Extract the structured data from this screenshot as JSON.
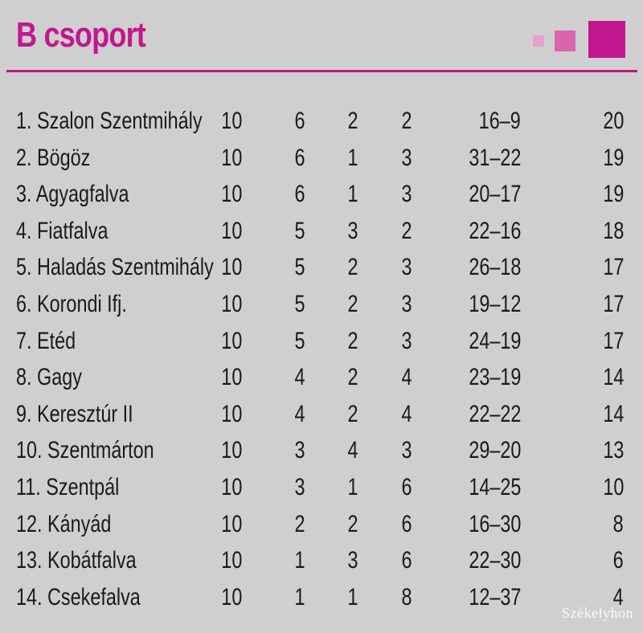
{
  "header": {
    "title": "B csoport",
    "accent_color": "#c2168e"
  },
  "standings": [
    {
      "name": "1. Szalon Szentmihály",
      "played": "10",
      "won": "6",
      "drawn": "2",
      "lost": "2",
      "goals": "16–9",
      "points": "20"
    },
    {
      "name": "2. Bögöz",
      "played": "10",
      "won": "6",
      "drawn": "1",
      "lost": "3",
      "goals": "31–22",
      "points": "19"
    },
    {
      "name": "3. Agyagfalva",
      "played": "10",
      "won": "6",
      "drawn": "1",
      "lost": "3",
      "goals": "20–17",
      "points": "19"
    },
    {
      "name": "4. Fiatfalva",
      "played": "10",
      "won": "5",
      "drawn": "3",
      "lost": "2",
      "goals": "22–16",
      "points": "18"
    },
    {
      "name": "5. Haladás Szentmihály",
      "played": "10",
      "won": "5",
      "drawn": "2",
      "lost": "3",
      "goals": "26–18",
      "points": "17"
    },
    {
      "name": "6. Korondi Ifj.",
      "played": "10",
      "won": "5",
      "drawn": "2",
      "lost": "3",
      "goals": "19–12",
      "points": "17"
    },
    {
      "name": "7. Etéd",
      "played": "10",
      "won": "5",
      "drawn": "2",
      "lost": "3",
      "goals": "24–19",
      "points": "17"
    },
    {
      "name": "8. Gagy",
      "played": "10",
      "won": "4",
      "drawn": "2",
      "lost": "4",
      "goals": "23–19",
      "points": "14"
    },
    {
      "name": "9. Keresztúr II",
      "played": "10",
      "won": "4",
      "drawn": "2",
      "lost": "4",
      "goals": "22–22",
      "points": "14"
    },
    {
      "name": "10. Szentmárton",
      "played": "10",
      "won": "3",
      "drawn": "4",
      "lost": "3",
      "goals": "29–20",
      "points": "13"
    },
    {
      "name": "11. Szentpál",
      "played": "10",
      "won": "3",
      "drawn": "1",
      "lost": "6",
      "goals": "14–25",
      "points": "10"
    },
    {
      "name": "12. Kányád",
      "played": "10",
      "won": "2",
      "drawn": "2",
      "lost": "6",
      "goals": "16–30",
      "points": "8"
    },
    {
      "name": "13. Kobátfalva",
      "played": "10",
      "won": "1",
      "drawn": "3",
      "lost": "6",
      "goals": "22–30",
      "points": "6"
    },
    {
      "name": "14. Csekefalva",
      "played": "10",
      "won": "1",
      "drawn": "1",
      "lost": "8",
      "goals": "12–37",
      "points": "4"
    }
  ],
  "watermark": "Székelyhon"
}
